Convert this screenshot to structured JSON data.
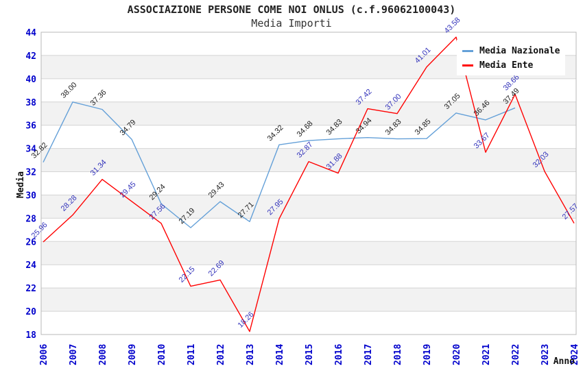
{
  "header": {
    "title": "ASSOCIAZIONE PERSONE COME NOI ONLUS (c.f.96062100043)",
    "subtitle": "Media Importi"
  },
  "colors": {
    "nazionale_line": "#64a0d8",
    "ente_line": "#ff0000",
    "nazionale_label": "#222222",
    "ente_label": "#3333bb",
    "axis_tick": "#0000cc",
    "band_gray": "#f2f2f2",
    "gridline": "#d4d4d4",
    "plot_border": "#b8b8b8"
  },
  "chart_data": {
    "type": "line",
    "title": "ASSOCIAZIONE PERSONE COME NOI ONLUS (c.f.96062100043)",
    "subtitle": "Media Importi",
    "xlabel": "Anno",
    "ylabel": "Media",
    "ylim": [
      18,
      44
    ],
    "ytick_step": 2,
    "grid": "horizontal-bands",
    "legend_position": "top-right",
    "x": [
      2006,
      2007,
      2008,
      2009,
      2010,
      2011,
      2012,
      2013,
      2014,
      2015,
      2016,
      2017,
      2018,
      2019,
      2020,
      2021,
      2022,
      2023,
      2024
    ],
    "series": [
      {
        "name": "Media Nazionale",
        "color": "#64a0d8",
        "label_color": "#222222",
        "values": [
          32.82,
          38.0,
          37.36,
          34.79,
          29.24,
          27.19,
          29.43,
          27.71,
          34.32,
          34.68,
          34.83,
          34.94,
          34.83,
          34.85,
          37.05,
          36.46,
          37.49,
          null,
          null
        ]
      },
      {
        "name": "Media Ente",
        "color": "#ff0000",
        "label_color": "#3333bb",
        "values": [
          25.96,
          28.28,
          31.34,
          29.45,
          27.56,
          22.15,
          22.69,
          18.26,
          27.95,
          32.87,
          31.88,
          37.42,
          37.0,
          41.01,
          43.58,
          33.67,
          38.66,
          32.03,
          27.57
        ]
      }
    ]
  }
}
